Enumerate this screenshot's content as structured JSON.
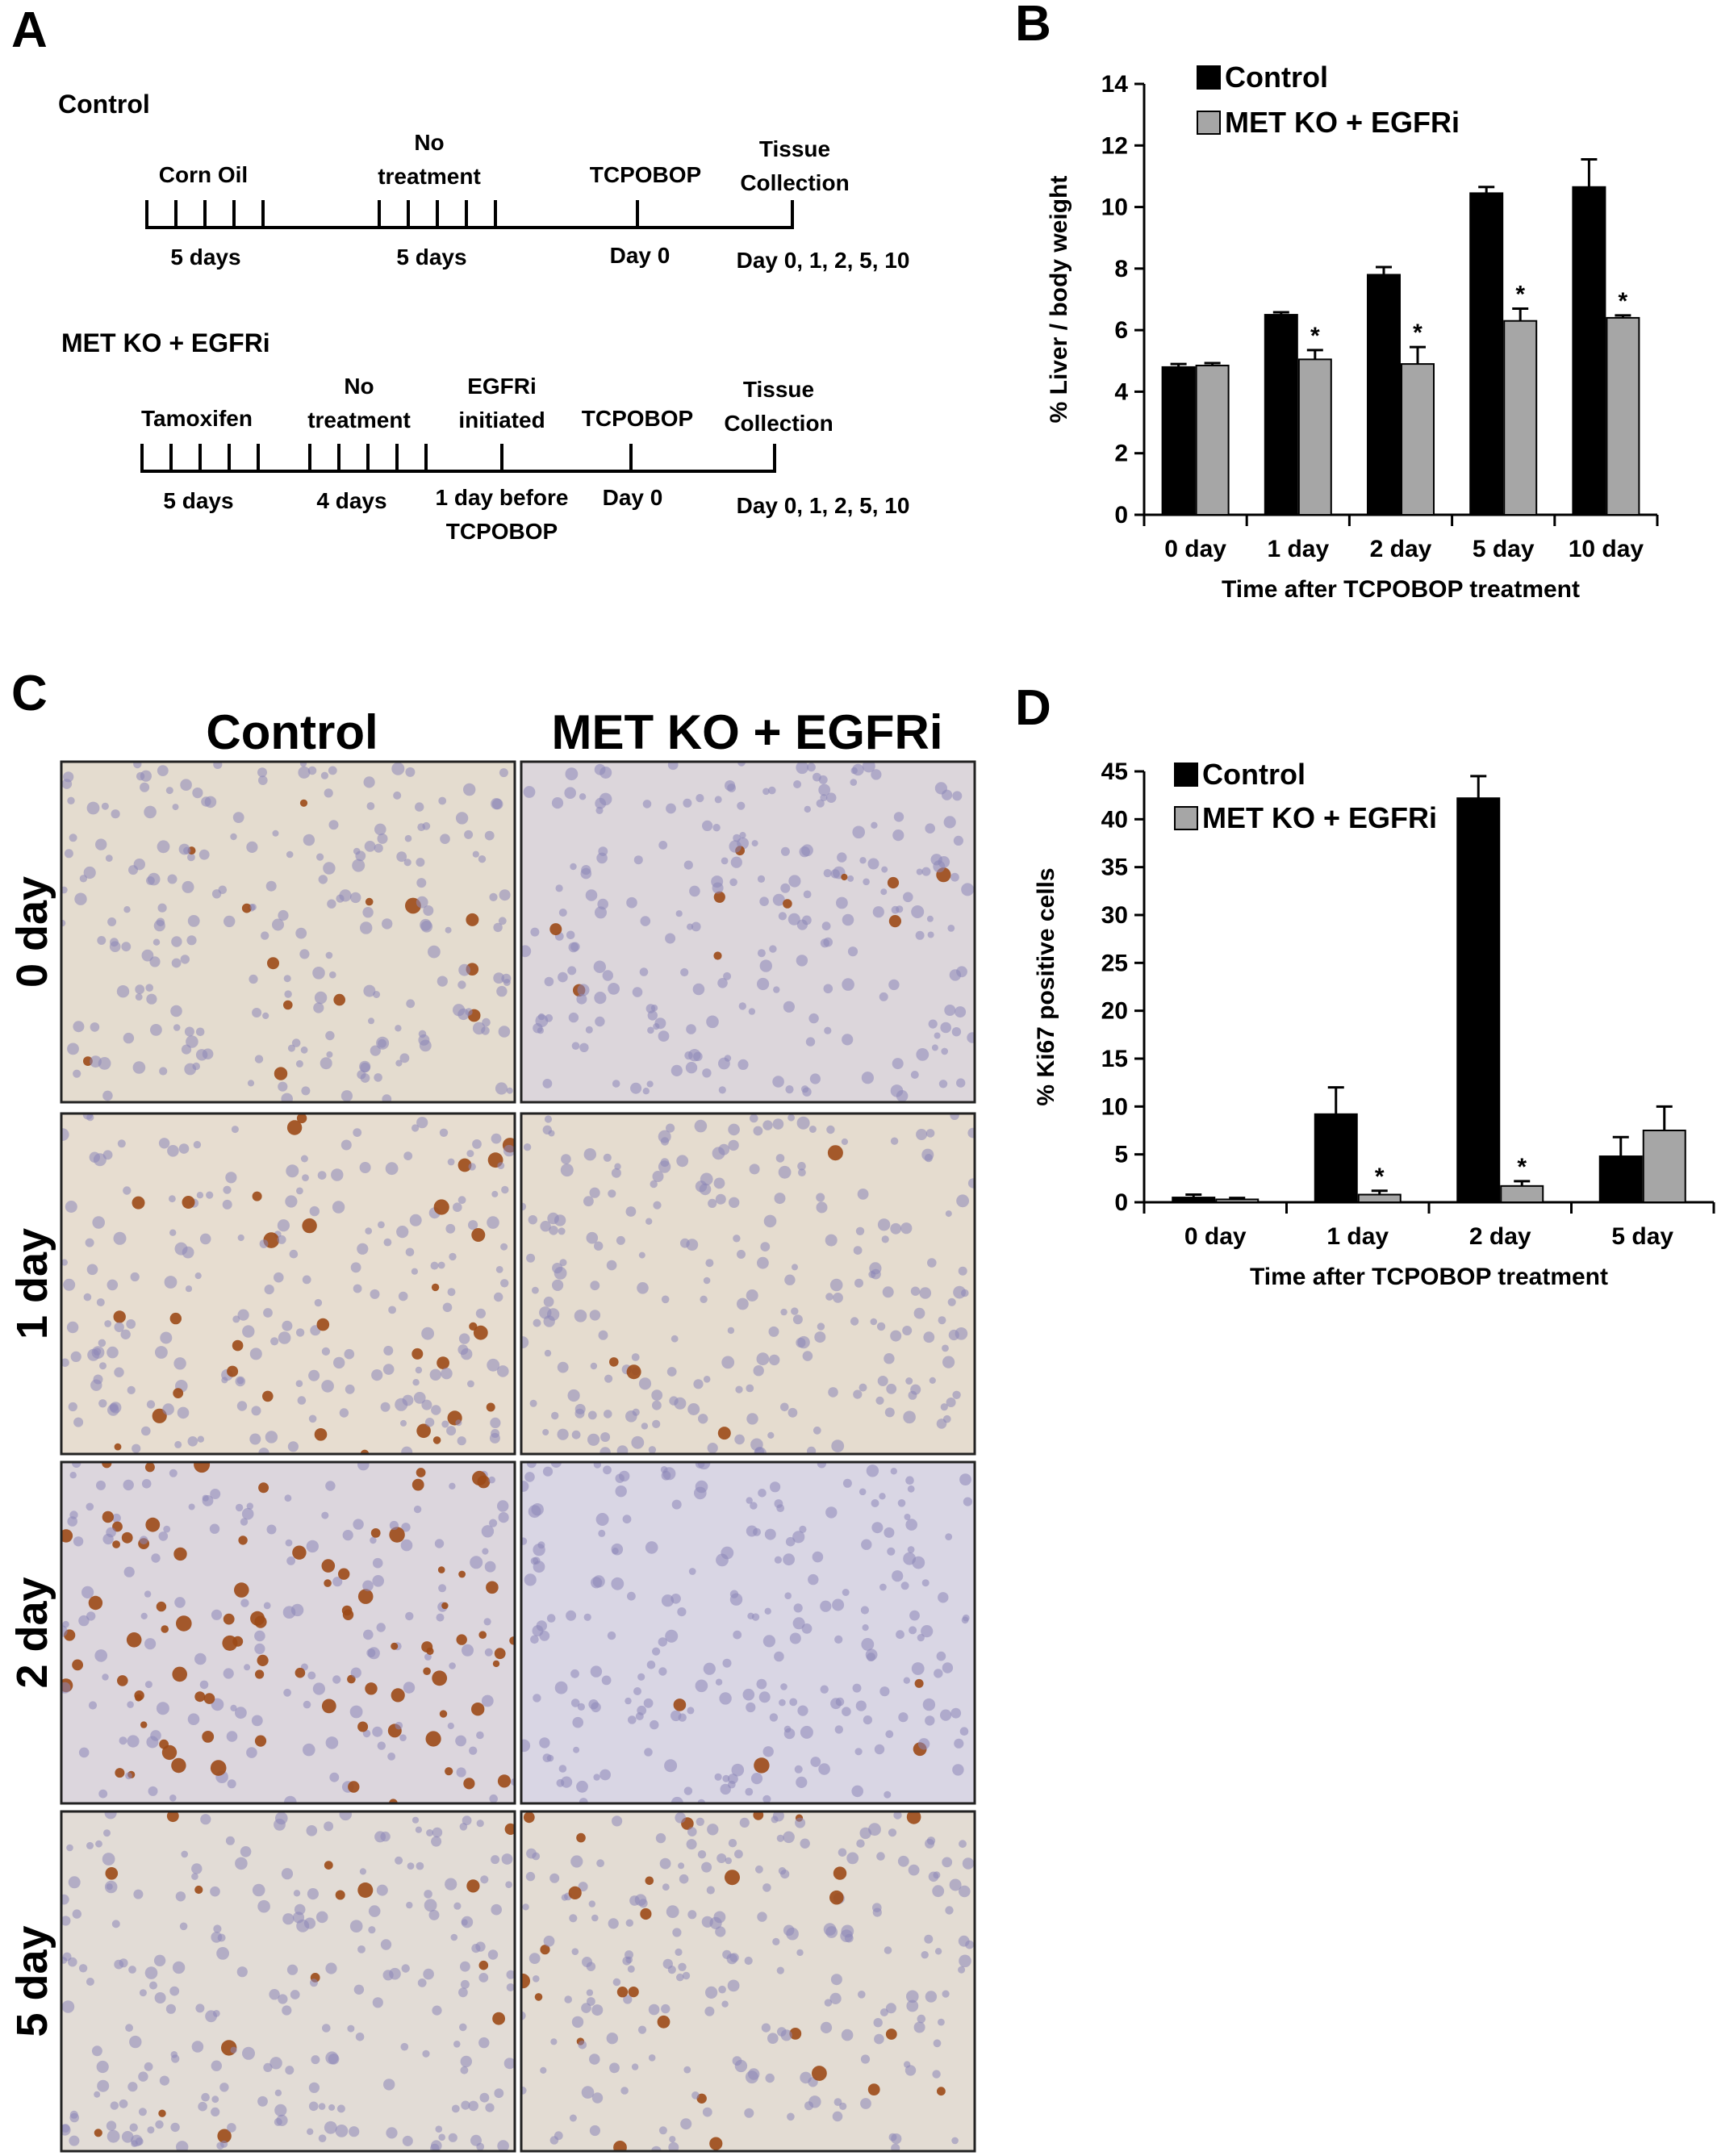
{
  "panels": {
    "a": {
      "letter": "A",
      "timelines": [
        {
          "title": "Control",
          "events": [
            {
              "label": [
                "Corn Oil"
              ],
              "duration": [
                "5 days"
              ]
            },
            {
              "label": [
                "No",
                "treatment"
              ],
              "duration": [
                "5 days"
              ]
            },
            {
              "label": [
                "TCPOBOP"
              ],
              "duration": [
                "Day 0"
              ]
            },
            {
              "label": [
                "Tissue",
                "Collection"
              ],
              "duration": [
                "Day 0, 1, 2, 5, 10"
              ]
            }
          ]
        },
        {
          "title": "MET KO + EGFRi",
          "events": [
            {
              "label": [
                "Tamoxifen"
              ],
              "duration": [
                "5 days"
              ]
            },
            {
              "label": [
                "No",
                "treatment"
              ],
              "duration": [
                "4 days"
              ]
            },
            {
              "label": [
                "EGFRi",
                "initiated"
              ],
              "duration": [
                "1 day before",
                "TCPOBOP"
              ]
            },
            {
              "label": [
                "TCPOBOP"
              ],
              "duration": [
                "Day 0"
              ]
            },
            {
              "label": [
                "Tissue",
                "Collection"
              ],
              "duration": [
                "Day 0, 1, 2, 5, 10"
              ]
            }
          ]
        }
      ]
    },
    "b": {
      "letter": "B"
    },
    "c": {
      "letter": "C",
      "columns": [
        "Control",
        "MET KO + EGFRi"
      ],
      "rows": [
        "0 day",
        "1 day",
        "2 day",
        "5 day"
      ]
    },
    "d": {
      "letter": "D"
    }
  },
  "colors": {
    "control": "#000000",
    "metko": "#a6a6a6",
    "tissue_bg": "#e6ddd0",
    "hematoxylin": "#8c87b8",
    "dab_brown": "#9c4a17"
  },
  "chart_data": [
    {
      "id": "b",
      "type": "bar",
      "title": "",
      "xlabel": "Time after TCPOBOP treatment",
      "ylabel": "% Liver / body weight",
      "ylim": [
        0,
        14
      ],
      "yticks": [
        "0",
        "2",
        "4",
        "6",
        "8",
        "10",
        "12",
        "14"
      ],
      "categories": [
        "0 day",
        "1 day",
        "2 day",
        "5 day",
        "10 day"
      ],
      "legend_position": "top-left",
      "series": [
        {
          "name": "Control",
          "values": [
            4.8,
            6.5,
            7.8,
            10.45,
            10.65
          ],
          "errors": [
            0.1,
            0.08,
            0.25,
            0.2,
            0.9
          ]
        },
        {
          "name": "MET KO + EGFRi",
          "values": [
            4.85,
            5.05,
            4.9,
            6.3,
            6.4
          ],
          "errors": [
            0.08,
            0.3,
            0.55,
            0.4,
            0.08
          ]
        }
      ],
      "significance": [
        null,
        "*",
        "*",
        "*",
        "*"
      ]
    },
    {
      "id": "d",
      "type": "bar",
      "title": "",
      "xlabel": "Time after TCPOBOP treatment",
      "ylabel": "% Ki67 positive cells",
      "ylim": [
        0,
        45
      ],
      "yticks": [
        "0",
        "5",
        "10",
        "15",
        "20",
        "25",
        "30",
        "35",
        "40",
        "45"
      ],
      "categories": [
        "0 day",
        "1 day",
        "2 day",
        "5 day"
      ],
      "legend_position": "top-left",
      "series": [
        {
          "name": "Control",
          "values": [
            0.5,
            9.2,
            42.2,
            4.8
          ],
          "errors": [
            0.3,
            2.8,
            2.3,
            2.0
          ]
        },
        {
          "name": "MET KO + EGFRi",
          "values": [
            0.3,
            0.8,
            1.7,
            7.5
          ],
          "errors": [
            0.15,
            0.4,
            0.5,
            2.5
          ]
        }
      ],
      "significance": [
        null,
        "*",
        "*",
        null
      ]
    }
  ]
}
